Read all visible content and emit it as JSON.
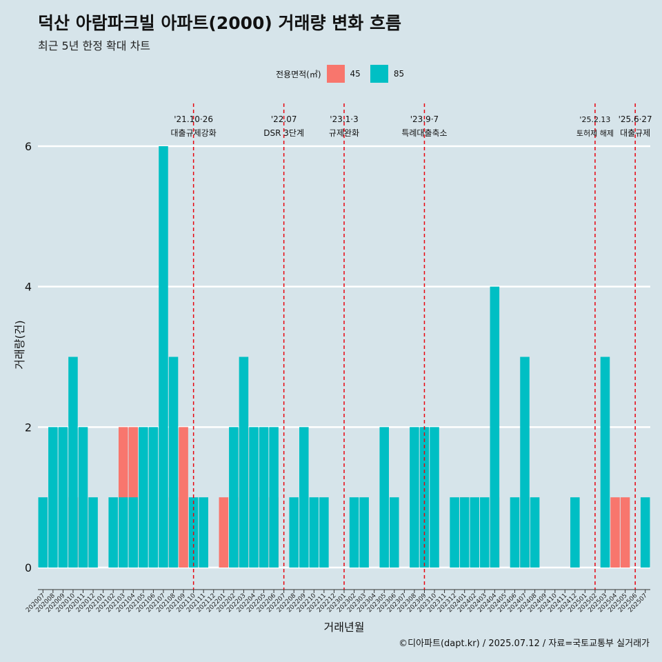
{
  "title": "덕산 아람파크빌 아파트(2000) 거래량 변화 흐름",
  "subtitle": "최근 5년 한정 확대 차트",
  "caption": "©디아파트(dapt.kr) / 2025.07.12 / 자료=국토교통부 실거래가",
  "legend": {
    "title": "전용면적(㎡)",
    "items": [
      {
        "label": "45",
        "color": "#f8766d"
      },
      {
        "label": "85",
        "color": "#00bfc4"
      }
    ]
  },
  "chart_data": {
    "type": "bar",
    "stacked": false,
    "xlabel": "거래년월",
    "ylabel": "거래량(건)",
    "ylim": [
      0,
      6
    ],
    "yticks": [
      0,
      2,
      4,
      6
    ],
    "grid": true,
    "legend_position": "top",
    "categories": [
      "202007",
      "202008",
      "202009",
      "202010",
      "202011",
      "202012",
      "202101",
      "202102",
      "202103",
      "202104",
      "202105",
      "202106",
      "202107",
      "202108",
      "202109",
      "202110",
      "202111",
      "202112",
      "202201",
      "202202",
      "202203",
      "202204",
      "202205",
      "202206",
      "202207",
      "202208",
      "202209",
      "202210",
      "202211",
      "202212",
      "202301",
      "202302",
      "202303",
      "202304",
      "202305",
      "202306",
      "202307",
      "202308",
      "202309",
      "202310",
      "202311",
      "202312",
      "202401",
      "202402",
      "202403",
      "202404",
      "202405",
      "202406",
      "202407",
      "202408",
      "202409",
      "202410",
      "202411",
      "202412",
      "202501",
      "202502",
      "202503",
      "202504",
      "202505",
      "202506",
      "202507"
    ],
    "series": [
      {
        "name": "45",
        "color": "#f8766d",
        "values": [
          0,
          0,
          0,
          1,
          1,
          0,
          0,
          0,
          2,
          2,
          0,
          0,
          0,
          1,
          2,
          0,
          0,
          0,
          1,
          1,
          2,
          0,
          1,
          1,
          0,
          0,
          0,
          0,
          0,
          0,
          0,
          0,
          0,
          0,
          0,
          0,
          0,
          0,
          0,
          0,
          0,
          0,
          1,
          0,
          0,
          1,
          0,
          0,
          1,
          0,
          0,
          0,
          0,
          0,
          0,
          0,
          0,
          1,
          1,
          0,
          0
        ]
      },
      {
        "name": "85",
        "color": "#00bfc4",
        "values": [
          1,
          2,
          2,
          3,
          2,
          1,
          0,
          1,
          1,
          1,
          2,
          2,
          6,
          3,
          0,
          1,
          1,
          0,
          0,
          2,
          3,
          2,
          2,
          2,
          0,
          1,
          2,
          1,
          1,
          0,
          0,
          1,
          1,
          0,
          2,
          1,
          0,
          2,
          2,
          2,
          0,
          1,
          1,
          1,
          1,
          4,
          0,
          1,
          3,
          1,
          0,
          0,
          0,
          1,
          0,
          0,
          3,
          0,
          0,
          0,
          1
        ]
      }
    ],
    "annotations": [
      {
        "month": "202110",
        "date": "'21.10·26",
        "label": "대출규제강화"
      },
      {
        "month": "202207",
        "date": "'22.07",
        "label": "DSR 3단계"
      },
      {
        "month": "202301",
        "date": "'23.1·3",
        "label": "규제완화"
      },
      {
        "month": "202309",
        "date": "'23.9·7",
        "label": "특례대출축소"
      },
      {
        "month": "202502",
        "date": "'25.2.13",
        "label": "토허제 해제"
      },
      {
        "month": "202506",
        "date": "'25.6·27",
        "label": "대출규제"
      }
    ]
  }
}
